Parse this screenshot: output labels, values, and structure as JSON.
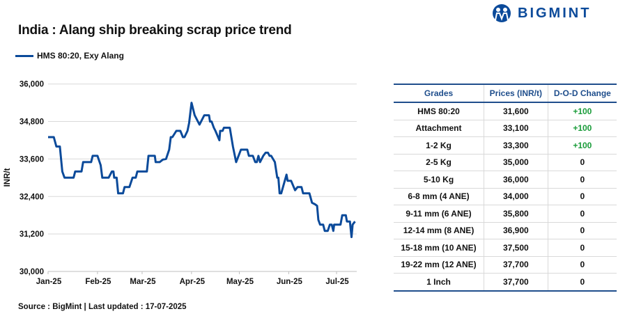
{
  "header": {
    "title": "India : Alang ship breaking scrap price trend",
    "logo_text": "BIGMINT"
  },
  "colors": {
    "line": "#0b4a9a",
    "header": "#1f4e8c",
    "positive": "#1a9c3a"
  },
  "chart_data": {
    "type": "line",
    "title": "India : Alang ship breaking scrap price trend",
    "ylabel": "INR/t",
    "xlabel": "",
    "ylim": [
      30000,
      36000
    ],
    "yticks": [
      "36,000",
      "34,800",
      "33,600",
      "32,400",
      "31,200",
      "30,000"
    ],
    "ytick_values": [
      36000,
      34800,
      33600,
      32400,
      31200,
      30000
    ],
    "xticks": [
      "Jan-25",
      "Feb-25",
      "Mar-25",
      "Apr-25",
      "May-25",
      "Jun-25",
      "Jul-25"
    ],
    "xtick_days": [
      0,
      31,
      59,
      90,
      120,
      151,
      181
    ],
    "x_unit": "days since 2025-01-01",
    "grid": true,
    "legend": "top-left",
    "series": [
      {
        "name": "HMS 80:20, Exy Alang",
        "points": [
          [
            0,
            34300
          ],
          [
            3.6,
            34300
          ],
          [
            5.2,
            34000
          ],
          [
            7.4,
            34000
          ],
          [
            8.9,
            33200
          ],
          [
            10.3,
            33000
          ],
          [
            16,
            33000
          ],
          [
            17,
            33200
          ],
          [
            21,
            33200
          ],
          [
            22,
            33500
          ],
          [
            27,
            33500
          ],
          [
            28,
            33700
          ],
          [
            31,
            33700
          ],
          [
            33,
            33400
          ],
          [
            34,
            33000
          ],
          [
            38,
            33000
          ],
          [
            40,
            33200
          ],
          [
            41,
            33200
          ],
          [
            41.5,
            33000
          ],
          [
            43,
            33000
          ],
          [
            44,
            32500
          ],
          [
            47,
            32500
          ],
          [
            48,
            32700
          ],
          [
            51,
            32700
          ],
          [
            53,
            33000
          ],
          [
            55,
            33000
          ],
          [
            56,
            33200
          ],
          [
            62,
            33200
          ],
          [
            63,
            33700
          ],
          [
            67,
            33700
          ],
          [
            67.5,
            33500
          ],
          [
            70,
            33500
          ],
          [
            72,
            33580
          ],
          [
            74,
            33600
          ],
          [
            76,
            33900
          ],
          [
            77,
            34300
          ],
          [
            78,
            34300
          ],
          [
            80.5,
            34500
          ],
          [
            83,
            34500
          ],
          [
            84.6,
            34300
          ],
          [
            85.6,
            34300
          ],
          [
            87.5,
            34500
          ],
          [
            88.5,
            34750
          ],
          [
            90,
            35400
          ],
          [
            92,
            35000
          ],
          [
            95,
            34700
          ],
          [
            96,
            34800
          ],
          [
            98,
            35000
          ],
          [
            101,
            35000
          ],
          [
            101.6,
            34800
          ],
          [
            102.6,
            34800
          ],
          [
            104,
            34600
          ],
          [
            105,
            34500
          ],
          [
            107.5,
            34200
          ],
          [
            108,
            34500
          ],
          [
            109.5,
            34500
          ],
          [
            110.3,
            34600
          ],
          [
            114,
            34600
          ],
          [
            116,
            34000
          ],
          [
            118,
            33500
          ],
          [
            121,
            33900
          ],
          [
            125,
            33900
          ],
          [
            126,
            33700
          ],
          [
            128.5,
            33700
          ],
          [
            130,
            33500
          ],
          [
            131,
            33500
          ],
          [
            132,
            33700
          ],
          [
            133,
            33500
          ],
          [
            135,
            33700
          ],
          [
            136.5,
            33800
          ],
          [
            138,
            33800
          ],
          [
            139,
            33700
          ],
          [
            140,
            33700
          ],
          [
            142.3,
            33500
          ],
          [
            143.8,
            33000
          ],
          [
            144.5,
            33000
          ],
          [
            145.3,
            32500
          ],
          [
            146.3,
            32500
          ],
          [
            149.6,
            33100
          ],
          [
            150.3,
            32900
          ],
          [
            152.5,
            32900
          ],
          [
            155,
            32600
          ],
          [
            156.5,
            32700
          ],
          [
            159,
            32700
          ],
          [
            160,
            32500
          ],
          [
            164,
            32500
          ],
          [
            165.6,
            32200
          ],
          [
            167.5,
            32150
          ],
          [
            168.8,
            32100
          ],
          [
            169.6,
            31650
          ],
          [
            170.7,
            31500
          ],
          [
            172.6,
            31500
          ],
          [
            173.6,
            31300
          ],
          [
            175.5,
            31300
          ],
          [
            176.8,
            31500
          ],
          [
            178,
            31500
          ],
          [
            179,
            31300
          ],
          [
            179.5,
            31500
          ],
          [
            183.5,
            31500
          ],
          [
            184.6,
            31800
          ],
          [
            186.8,
            31800
          ],
          [
            187.5,
            31600
          ],
          [
            189.4,
            31600
          ],
          [
            190.4,
            31100
          ],
          [
            191.1,
            31500
          ],
          [
            192.6,
            31600
          ]
        ]
      }
    ]
  },
  "table": {
    "headers": [
      "Grades",
      "Prices (INR/t)",
      "D-O-D Change"
    ],
    "rows": [
      [
        "HMS 80:20",
        "31,600",
        "+100"
      ],
      [
        "Attachment",
        "33,100",
        "+100"
      ],
      [
        "1-2 Kg",
        "33,300",
        "+100"
      ],
      [
        "2-5 Kg",
        "35,000",
        "0"
      ],
      [
        "5-10 Kg",
        "36,000",
        "0"
      ],
      [
        "6-8 mm (4 ANE)",
        "34,000",
        "0"
      ],
      [
        "9-11 mm (6 ANE)",
        "35,800",
        "0"
      ],
      [
        "12-14 mm (8 ANE)",
        "36,900",
        "0"
      ],
      [
        "15-18 mm (10 ANE)",
        "37,500",
        "0"
      ],
      [
        "19-22 mm (12 ANE)",
        "37,700",
        "0"
      ],
      [
        "1 Inch",
        "37,700",
        "0"
      ]
    ]
  },
  "footer": {
    "source": "Source : BigMint | Last updated : 17-07-2025"
  }
}
